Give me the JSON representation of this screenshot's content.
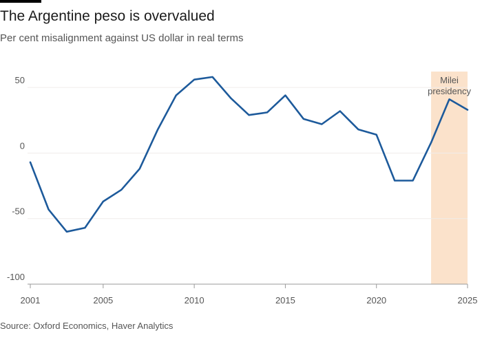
{
  "header": {
    "title": "The Argentine peso is overvalued",
    "subtitle": "Per cent misalignment against US dollar in real terms"
  },
  "footer": {
    "source": "Source: Oxford Economics, Haver Analytics"
  },
  "chart_data": {
    "type": "line",
    "title": "The Argentine peso is overvalued",
    "subtitle": "Per cent misalignment against US dollar in real terms",
    "xlabel": "",
    "ylabel": "",
    "xlim": [
      2001,
      2025
    ],
    "ylim": [
      -100,
      80
    ],
    "x_ticks": [
      2001,
      2005,
      2010,
      2015,
      2020,
      2025
    ],
    "y_ticks": [
      50,
      0,
      -50,
      -100
    ],
    "grid": true,
    "legend": "none",
    "series": [
      {
        "color": "#1d5a9b",
        "x": [
          2001,
          2002,
          2003,
          2004,
          2005,
          2006,
          2007,
          2008,
          2009,
          2010,
          2011,
          2012,
          2013,
          2014,
          2015,
          2016,
          2017,
          2018,
          2019,
          2020,
          2021,
          2022,
          2023,
          2024,
          2025
        ],
        "y": [
          -7,
          -43,
          -60,
          -57,
          -37,
          -28,
          -12,
          18,
          44,
          56,
          58,
          42,
          29,
          31,
          44,
          26,
          22,
          32,
          18,
          14,
          -21,
          -21,
          8,
          41,
          33
        ]
      }
    ],
    "annotations": [
      {
        "label_lines": [
          "Milei",
          "presidency"
        ],
        "x_start": 2023,
        "x_end": 2025,
        "color": "#fbe2cb"
      }
    ]
  }
}
